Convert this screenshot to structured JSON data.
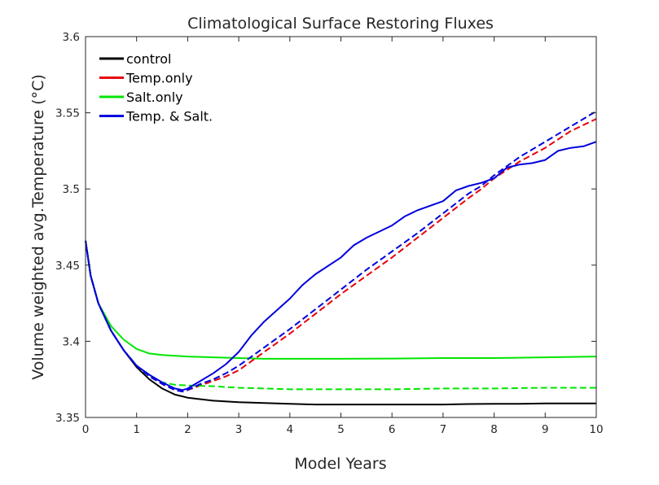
{
  "chart_data": {
    "type": "line",
    "title": "Climatological Surface Restoring Fluxes",
    "xlabel": "Model Years",
    "ylabel": "Volume weighted avg.Temperature (°C)",
    "xlim": [
      0,
      10
    ],
    "ylim": [
      3.35,
      3.6
    ],
    "xticks": [
      0,
      1,
      2,
      3,
      4,
      5,
      6,
      7,
      8,
      9,
      10
    ],
    "yticks": [
      3.35,
      3.4,
      3.45,
      3.5,
      3.55,
      3.6
    ],
    "xtick_labels": [
      "0",
      "1",
      "2",
      "3",
      "4",
      "5",
      "6",
      "7",
      "8",
      "9",
      "10"
    ],
    "ytick_labels": [
      "3.35",
      "3.4",
      "3.45",
      "3.5",
      "3.55",
      "3.6"
    ],
    "grid": false,
    "legend_position": "top-left",
    "legend": [
      {
        "label": "control",
        "color": "#000000"
      },
      {
        "label": "Temp.only",
        "color": "#e8000b"
      },
      {
        "label": "Salt.only",
        "color": "#00e600"
      },
      {
        "label": "Temp. & Salt.",
        "color": "#0000e0"
      }
    ],
    "series": [
      {
        "name": "control",
        "color": "#000000",
        "style": "solid",
        "x": [
          0,
          0.1,
          0.25,
          0.5,
          0.75,
          1,
          1.25,
          1.5,
          1.75,
          2,
          2.5,
          3,
          3.5,
          4,
          4.5,
          5,
          5.5,
          6,
          6.5,
          7,
          7.5,
          8,
          8.5,
          9,
          9.5,
          10
        ],
        "y": [
          3.466,
          3.443,
          3.425,
          3.407,
          3.394,
          3.383,
          3.375,
          3.369,
          3.365,
          3.363,
          3.361,
          3.36,
          3.3595,
          3.359,
          3.3585,
          3.3585,
          3.3585,
          3.3585,
          3.3585,
          3.3585,
          3.3588,
          3.359,
          3.359,
          3.3592,
          3.3592,
          3.3592
        ]
      },
      {
        "name": "Temp.only (dashed)",
        "color": "#e8000b",
        "style": "dashed",
        "x": [
          0,
          0.1,
          0.25,
          0.5,
          0.75,
          1,
          1.25,
          1.5,
          1.75,
          1.9,
          2,
          2.25,
          2.5,
          2.75,
          3,
          3.5,
          4,
          4.5,
          5,
          5.5,
          6,
          6.5,
          7,
          7.5,
          7.75,
          8,
          8.5,
          9,
          9.5,
          10
        ],
        "y": [
          3.466,
          3.443,
          3.425,
          3.407,
          3.394,
          3.384,
          3.377,
          3.372,
          3.368,
          3.367,
          3.368,
          3.371,
          3.374,
          3.377,
          3.381,
          3.393,
          3.405,
          3.418,
          3.431,
          3.443,
          3.455,
          3.468,
          3.481,
          3.494,
          3.5,
          3.507,
          3.518,
          3.527,
          3.538,
          3.546
        ]
      },
      {
        "name": "Salt.only",
        "color": "#00e600",
        "style": "solid",
        "x": [
          0,
          0.1,
          0.25,
          0.5,
          0.75,
          1,
          1.25,
          1.5,
          1.75,
          2,
          2.5,
          3,
          3.5,
          4,
          5,
          6,
          7,
          8,
          9,
          10
        ],
        "y": [
          3.466,
          3.443,
          3.425,
          3.41,
          3.401,
          3.395,
          3.392,
          3.391,
          3.3905,
          3.39,
          3.3895,
          3.389,
          3.3885,
          3.3885,
          3.3885,
          3.3887,
          3.389,
          3.389,
          3.3895,
          3.39
        ]
      },
      {
        "name": "Salt.only (dashed)",
        "color": "#00e600",
        "style": "dashed",
        "x": [
          0,
          0.1,
          0.25,
          0.5,
          0.75,
          1,
          1.25,
          1.5,
          1.75,
          2,
          2.5,
          3,
          3.5,
          4,
          5,
          6,
          7,
          8,
          9,
          10
        ],
        "y": [
          3.466,
          3.443,
          3.425,
          3.407,
          3.394,
          3.384,
          3.377,
          3.373,
          3.3715,
          3.371,
          3.3705,
          3.3695,
          3.369,
          3.3685,
          3.3685,
          3.3685,
          3.369,
          3.369,
          3.3695,
          3.3695
        ]
      },
      {
        "name": "Temp. & Salt. (dashed)",
        "color": "#0000e0",
        "style": "dashed",
        "x": [
          0,
          0.1,
          0.25,
          0.5,
          0.75,
          1,
          1.25,
          1.5,
          1.75,
          1.9,
          2,
          2.25,
          2.5,
          2.75,
          3,
          3.5,
          4,
          4.5,
          5,
          5.5,
          6,
          6.5,
          7,
          7.5,
          7.75,
          8,
          8.5,
          9,
          9.5,
          10
        ],
        "y": [
          3.466,
          3.443,
          3.425,
          3.407,
          3.394,
          3.384,
          3.377,
          3.372,
          3.368,
          3.367,
          3.368,
          3.372,
          3.375,
          3.379,
          3.384,
          3.396,
          3.408,
          3.421,
          3.434,
          3.447,
          3.459,
          3.471,
          3.484,
          3.497,
          3.502,
          3.509,
          3.521,
          3.531,
          3.541,
          3.551
        ]
      },
      {
        "name": "Temp. & Salt.",
        "color": "#0000e0",
        "style": "solid",
        "x": [
          0,
          0.1,
          0.25,
          0.5,
          0.75,
          1,
          1.25,
          1.5,
          1.75,
          1.9,
          2,
          2.25,
          2.5,
          2.75,
          3,
          3.25,
          3.5,
          4,
          4.25,
          4.5,
          5,
          5.25,
          5.5,
          6,
          6.25,
          6.5,
          7,
          7.25,
          7.5,
          7.75,
          8,
          8.25,
          8.5,
          8.75,
          9,
          9.25,
          9.5,
          9.75,
          10
        ],
        "y": [
          3.466,
          3.443,
          3.425,
          3.407,
          3.394,
          3.384,
          3.378,
          3.373,
          3.369,
          3.368,
          3.369,
          3.374,
          3.379,
          3.385,
          3.393,
          3.404,
          3.413,
          3.428,
          3.437,
          3.444,
          3.455,
          3.463,
          3.468,
          3.476,
          3.482,
          3.486,
          3.492,
          3.499,
          3.502,
          3.504,
          3.507,
          3.514,
          3.516,
          3.517,
          3.519,
          3.525,
          3.527,
          3.528,
          3.531
        ]
      }
    ]
  }
}
